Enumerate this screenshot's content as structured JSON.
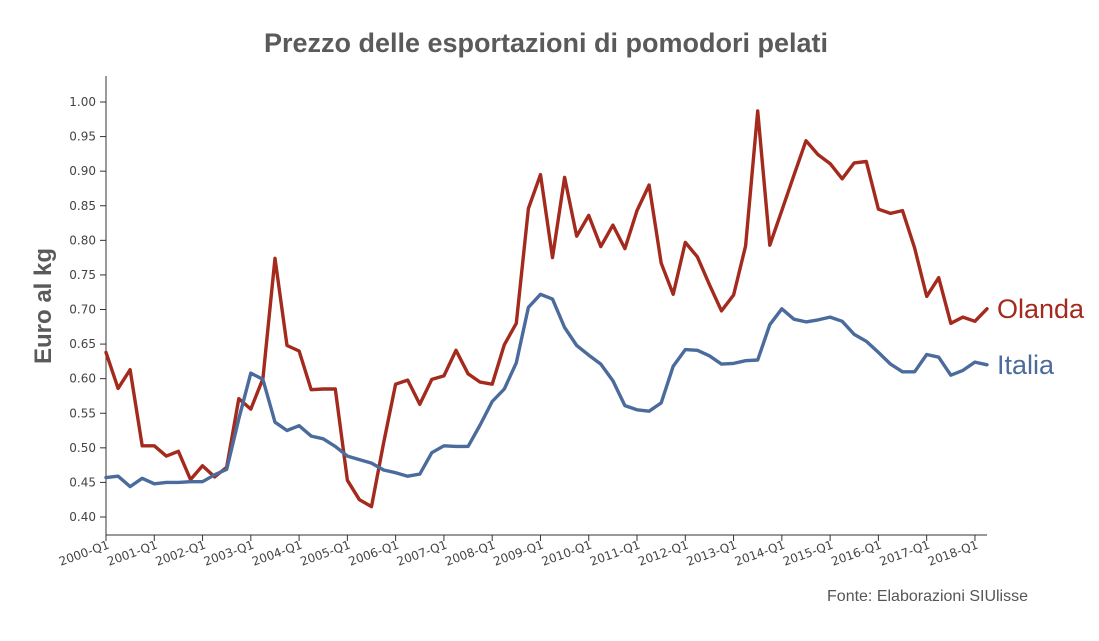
{
  "chart_data": {
    "type": "line",
    "title": "Prezzo delle esportazioni di pomodori pelati",
    "xlabel": "",
    "ylabel": "Euro al kg",
    "source": "Fonte: Elaborazioni SIUlisse",
    "ylim": [
      0.38,
      1.04
    ],
    "yticks": [
      "0.40",
      "0.45",
      "0.50",
      "0.55",
      "0.60",
      "0.65",
      "0.70",
      "0.75",
      "0.80",
      "0.85",
      "0.90",
      "0.95",
      "1.00"
    ],
    "xticks": [
      "2000-Q1",
      "2001-Q1",
      "2002-Q1",
      "2003-Q1",
      "2004-Q1",
      "2005-Q1",
      "2006-Q1",
      "2007-Q1",
      "2008-Q1",
      "2009-Q1",
      "2010-Q1",
      "2011-Q1",
      "2012-Q1",
      "2013-Q1",
      "2014-Q1",
      "2015-Q1",
      "2016-Q1",
      "2017-Q1",
      "2018-Q1"
    ],
    "x_start": "2000-Q1",
    "x_end": "2018-Q1",
    "grid": false,
    "legend": "inline labels at line ends",
    "series": [
      {
        "name": "Olanda",
        "color": "#a32a1d",
        "values": [
          0.638,
          0.586,
          0.613,
          0.503,
          0.503,
          0.488,
          0.495,
          0.454,
          0.474,
          0.458,
          0.472,
          0.571,
          0.556,
          0.6,
          0.774,
          0.648,
          0.64,
          0.584,
          0.585,
          0.585,
          0.453,
          0.425,
          0.415,
          0.507,
          0.592,
          0.598,
          0.563,
          0.599,
          0.604,
          0.641,
          0.607,
          0.595,
          0.592,
          0.649,
          0.68,
          0.846,
          0.895,
          0.775,
          0.891,
          0.806,
          0.836,
          0.791,
          0.822,
          0.788,
          0.843,
          0.88,
          0.767,
          0.722,
          0.797,
          0.776,
          0.736,
          0.698,
          0.721,
          0.792,
          0.987,
          0.793,
          0.843,
          0.894,
          0.944,
          0.924,
          0.911,
          0.889,
          0.912,
          0.914,
          0.845,
          0.839,
          0.843,
          0.789,
          0.719,
          0.746,
          0.68,
          0.689,
          0.683,
          0.701
        ]
      },
      {
        "name": "Italia",
        "color": "#4a6b9c",
        "values": [
          0.457,
          0.459,
          0.444,
          0.456,
          0.448,
          0.45,
          0.45,
          0.451,
          0.451,
          0.461,
          0.469,
          0.542,
          0.608,
          0.599,
          0.537,
          0.525,
          0.532,
          0.517,
          0.513,
          0.502,
          0.488,
          0.483,
          0.478,
          0.468,
          0.464,
          0.459,
          0.462,
          0.493,
          0.503,
          0.502,
          0.502,
          0.533,
          0.567,
          0.585,
          0.623,
          0.703,
          0.722,
          0.715,
          0.674,
          0.648,
          0.634,
          0.621,
          0.597,
          0.561,
          0.555,
          0.553,
          0.565,
          0.618,
          0.642,
          0.641,
          0.633,
          0.621,
          0.622,
          0.626,
          0.627,
          0.678,
          0.701,
          0.686,
          0.682,
          0.685,
          0.689,
          0.683,
          0.664,
          0.654,
          0.638,
          0.621,
          0.61,
          0.61,
          0.635,
          0.631,
          0.605,
          0.612,
          0.624,
          0.62
        ]
      }
    ]
  }
}
